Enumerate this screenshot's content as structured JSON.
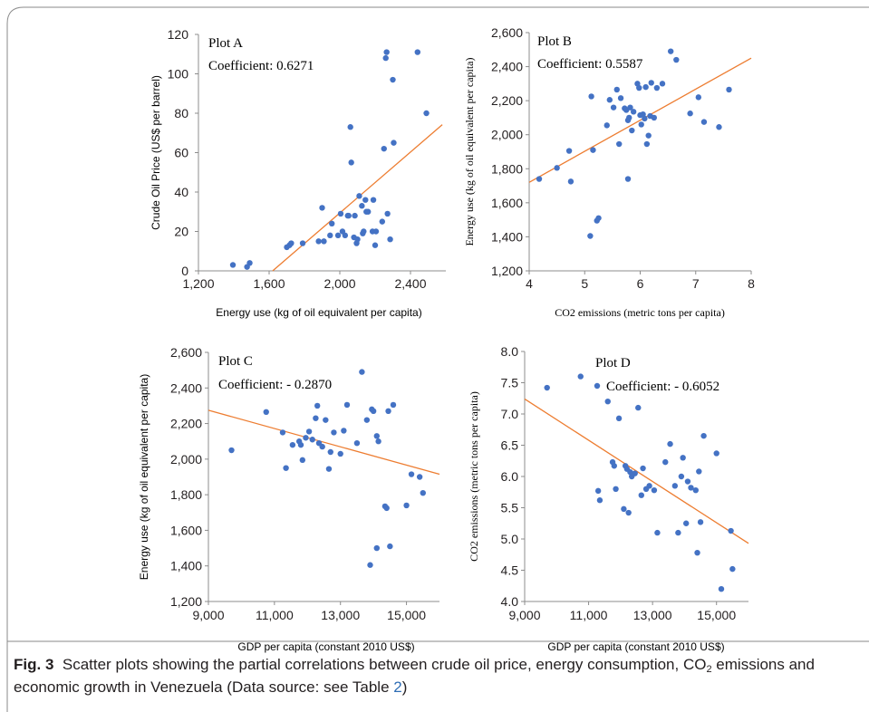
{
  "figure": {
    "caption_label": "Fig. 3",
    "caption_text_before": "Scatter plots showing the partial correlations between crude oil price, energy consumption, CO",
    "caption_sub": "2",
    "caption_text_mid": " emissions and economic growth in Venezuela (Data source: see Table ",
    "caption_ref": "2",
    "caption_text_end": ")"
  },
  "chart_data": [
    {
      "type": "scatter",
      "title": "Plot A",
      "annotation": "Coefficient: 0.6271",
      "xlabel": "Energy use (kg of oil equivalent per capita)",
      "ylabel": "Crude Oil Price (US$ per barrel)",
      "xlim": [
        1200,
        2600
      ],
      "ylim": [
        0,
        120
      ],
      "xticks": [
        1200,
        1600,
        2000,
        2400
      ],
      "xtick_labels": [
        "1,200",
        "1,600",
        "2,000",
        "2,400"
      ],
      "yticks": [
        0,
        20,
        40,
        60,
        80,
        100,
        120
      ],
      "ytick_labels": [
        "0",
        "20",
        "40",
        "60",
        "80",
        "100",
        "120"
      ],
      "x": [
        1395,
        1475,
        1490,
        1700,
        1715,
        1725,
        1790,
        1880,
        1900,
        1910,
        1945,
        1955,
        1990,
        2005,
        2015,
        2030,
        2045,
        2050,
        2060,
        2065,
        2080,
        2085,
        2095,
        2100,
        2110,
        2125,
        2130,
        2135,
        2145,
        2150,
        2160,
        2185,
        2190,
        2200,
        2205,
        2240,
        2250,
        2260,
        2265,
        2270,
        2285,
        2300,
        2305,
        2440,
        2490
      ],
      "y": [
        3,
        2,
        4,
        12,
        13,
        14,
        14,
        15,
        32,
        15,
        18,
        24,
        18,
        29,
        20,
        18,
        28,
        28,
        73,
        55,
        17,
        28,
        14,
        16,
        38,
        33,
        19,
        20,
        36,
        30,
        30,
        20,
        36,
        13,
        20,
        25,
        62,
        108,
        111,
        29,
        16,
        97,
        65,
        111,
        80
      ],
      "trendline": {
        "x": [
          1620,
          2580
        ],
        "y": [
          0,
          74.2
        ]
      },
      "marker_color": "#4472c4",
      "trendline_color": "#ed7d31"
    },
    {
      "type": "scatter",
      "title": "Plot B",
      "annotation": "Coefficient: 0.5587",
      "xlabel": "CO2 emissions (metric tons per capita)",
      "ylabel": "Energy use (kg of oil equivalent per capita)",
      "xlim": [
        4,
        8
      ],
      "ylim": [
        1200,
        2600
      ],
      "xticks": [
        4,
        5,
        6,
        7,
        8
      ],
      "xtick_labels": [
        "4",
        "5",
        "6",
        "7",
        "8"
      ],
      "yticks": [
        1200,
        1400,
        1600,
        1800,
        2000,
        2200,
        2400,
        2600
      ],
      "ytick_labels": [
        "1,200",
        "1,400",
        "1,600",
        "1,800",
        "2,000",
        "2,200",
        "2,400",
        "2,600"
      ],
      "x": [
        4.18,
        4.5,
        4.72,
        4.75,
        5.1,
        5.12,
        5.15,
        5.22,
        5.25,
        5.4,
        5.45,
        5.52,
        5.58,
        5.62,
        5.65,
        5.72,
        5.75,
        5.78,
        5.78,
        5.8,
        5.82,
        5.85,
        5.88,
        5.95,
        5.98,
        6.0,
        6.02,
        6.05,
        6.08,
        6.1,
        6.12,
        6.15,
        6.18,
        6.2,
        6.25,
        6.3,
        6.4,
        6.55,
        6.65,
        6.9,
        7.05,
        7.15,
        7.42,
        7.6
      ],
      "y": [
        1740,
        1805,
        1905,
        1725,
        1405,
        2225,
        1910,
        1495,
        1510,
        2055,
        2205,
        2160,
        2265,
        1945,
        2215,
        2155,
        2145,
        1740,
        2085,
        2100,
        2160,
        2025,
        2135,
        2300,
        2275,
        2115,
        2060,
        2120,
        2095,
        2280,
        1945,
        1995,
        2110,
        2305,
        2100,
        2275,
        2300,
        2490,
        2440,
        2125,
        2220,
        2075,
        2045,
        2265
      ],
      "trendline": {
        "x": [
          4,
          8
        ],
        "y": [
          1720,
          2450
        ]
      },
      "marker_color": "#4472c4",
      "trendline_color": "#ed7d31"
    },
    {
      "type": "scatter",
      "title": "Plot C",
      "annotation": "Coefficient: - 0.2870",
      "xlabel": "GDP per capita (constant 2010 US$)",
      "ylabel": "Energy use (kg of oil equivalent per capita)",
      "xlim": [
        9000,
        16000
      ],
      "ylim": [
        1200,
        2600
      ],
      "xticks": [
        9000,
        11000,
        13000,
        15000
      ],
      "xtick_labels": [
        "9,000",
        "11,000",
        "13,000",
        "15,000"
      ],
      "yticks": [
        1200,
        1400,
        1600,
        1800,
        2000,
        2200,
        2400,
        2600
      ],
      "ytick_labels": [
        "1,200",
        "1,400",
        "1,600",
        "1,800",
        "2,000",
        "2,200",
        "2,400",
        "2,600"
      ],
      "x": [
        9700,
        10750,
        11250,
        11350,
        11550,
        11750,
        11800,
        11850,
        11950,
        12050,
        12150,
        12250,
        12300,
        12350,
        12450,
        12550,
        12650,
        12700,
        12800,
        13000,
        13100,
        13200,
        13500,
        13650,
        13800,
        13900,
        13950,
        14000,
        14100,
        14100,
        14150,
        14350,
        14400,
        14450,
        14500,
        14600,
        15000,
        15150,
        15400,
        15500
      ],
      "y": [
        2050,
        2265,
        2150,
        1950,
        2080,
        2100,
        2080,
        1995,
        2120,
        2155,
        2110,
        2230,
        2300,
        2090,
        2070,
        2220,
        1945,
        2040,
        2150,
        2030,
        2160,
        2305,
        2090,
        2490,
        2220,
        1405,
        2280,
        2270,
        2130,
        1500,
        2100,
        1735,
        1725,
        2270,
        1510,
        2305,
        1740,
        1915,
        1900,
        1810
      ],
      "trendline": {
        "x": [
          9000,
          16000
        ],
        "y": [
          2275,
          1915
        ]
      },
      "marker_color": "#4472c4",
      "trendline_color": "#ed7d31"
    },
    {
      "type": "scatter",
      "title": "Plot D",
      "annotation": "Coefficient: - 0.6052",
      "xlabel": "GDP per capita (constant 2010 US$)",
      "ylabel": "CO2 emissions (metric tons per capita)",
      "xlim": [
        9000,
        16000
      ],
      "ylim": [
        4.0,
        8.0
      ],
      "xticks": [
        9000,
        11000,
        13000,
        15000
      ],
      "xtick_labels": [
        "9,000",
        "11,000",
        "13,000",
        "15,000"
      ],
      "yticks": [
        4.0,
        4.5,
        5.0,
        5.5,
        6.0,
        6.5,
        7.0,
        7.5,
        8.0
      ],
      "ytick_labels": [
        "4.0",
        "4.5",
        "5.0",
        "5.5",
        "6.0",
        "6.5",
        "7.0",
        "7.5",
        "8.0"
      ],
      "x": [
        9700,
        10750,
        11300,
        11350,
        11600,
        11750,
        11800,
        11850,
        11950,
        12100,
        12150,
        12200,
        12250,
        12300,
        12350,
        12450,
        12550,
        12650,
        12700,
        12800,
        12900,
        13050,
        13150,
        13400,
        13550,
        13700,
        13800,
        13900,
        13950,
        14050,
        14100,
        14200,
        14350,
        14400,
        14450,
        14500,
        14600,
        15000,
        15150,
        15450,
        15500
      ],
      "y": [
        7.42,
        7.6,
        5.77,
        5.62,
        7.2,
        6.23,
        6.17,
        5.8,
        6.93,
        5.48,
        6.17,
        6.12,
        5.42,
        6.07,
        6.0,
        6.05,
        7.1,
        5.7,
        6.13,
        5.8,
        5.85,
        5.78,
        5.1,
        6.23,
        6.52,
        5.85,
        5.1,
        6.0,
        6.3,
        5.25,
        5.92,
        5.82,
        5.78,
        4.78,
        6.08,
        5.27,
        6.65,
        6.37,
        4.2,
        5.13,
        4.52
      ],
      "trendline": {
        "x": [
          9000,
          16000
        ],
        "y": [
          7.24,
          4.93
        ]
      },
      "marker_color": "#4472c4",
      "trendline_color": "#ed7d31"
    }
  ]
}
